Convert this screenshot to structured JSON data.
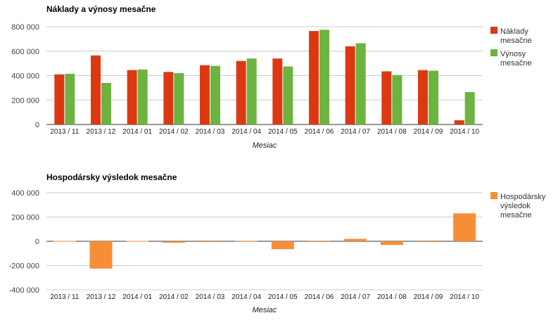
{
  "chart_data": [
    {
      "type": "bar",
      "title": "Náklady a výnosy mesačne",
      "xlabel": "Mesiac",
      "ylabel": "",
      "ylim": [
        0,
        800000
      ],
      "yticks": [
        0,
        200000,
        400000,
        600000,
        800000
      ],
      "ytick_labels": [
        "0",
        "200 000",
        "400 000",
        "600 000",
        "800 000"
      ],
      "grid": true,
      "legend_position": "right",
      "categories": [
        "2013 / 11",
        "2013 / 12",
        "2014 / 01",
        "2014 / 02",
        "2014 / 03",
        "2014 / 04",
        "2014 / 05",
        "2014 / 06",
        "2014 / 07",
        "2014 / 08",
        "2014 / 09",
        "2014 / 10"
      ],
      "series": [
        {
          "name": "Náklady mesačne",
          "legend_lines": [
            "Náklady",
            "mesačne"
          ],
          "color": "#dc3912",
          "values": [
            410000,
            565000,
            445000,
            430000,
            485000,
            520000,
            540000,
            765000,
            640000,
            435000,
            445000,
            35000
          ]
        },
        {
          "name": "Výnosy mesačne",
          "legend_lines": [
            "Výnosy",
            "mesačne"
          ],
          "color": "#6db33f",
          "values": [
            415000,
            340000,
            450000,
            420000,
            480000,
            540000,
            475000,
            775000,
            665000,
            405000,
            440000,
            265000
          ]
        }
      ]
    },
    {
      "type": "bar",
      "title": "Hospodársky výsledok mesačne",
      "xlabel": "Mesiac",
      "ylabel": "",
      "ylim": [
        -400000,
        400000
      ],
      "yticks": [
        -400000,
        -200000,
        0,
        200000,
        400000
      ],
      "ytick_labels": [
        "-400 000",
        "-200 000",
        "0",
        "200 000",
        "400 000"
      ],
      "grid": true,
      "legend_position": "right",
      "categories": [
        "2013 / 11",
        "2013 / 12",
        "2014 / 01",
        "2014 / 02",
        "2014 / 03",
        "2014 / 04",
        "2014 / 05",
        "2014 / 06",
        "2014 / 07",
        "2014 / 08",
        "2014 / 09",
        "2014 / 10"
      ],
      "series": [
        {
          "name": "Hospodársky výsledok mesačne",
          "legend_lines": [
            "Hospodársky",
            "výsledok",
            "mesačne"
          ],
          "color": "#f68e38",
          "values": [
            3000,
            -225000,
            3000,
            -12000,
            -6000,
            4000,
            -65000,
            5000,
            20000,
            -30000,
            -2000,
            230000
          ]
        }
      ]
    }
  ]
}
